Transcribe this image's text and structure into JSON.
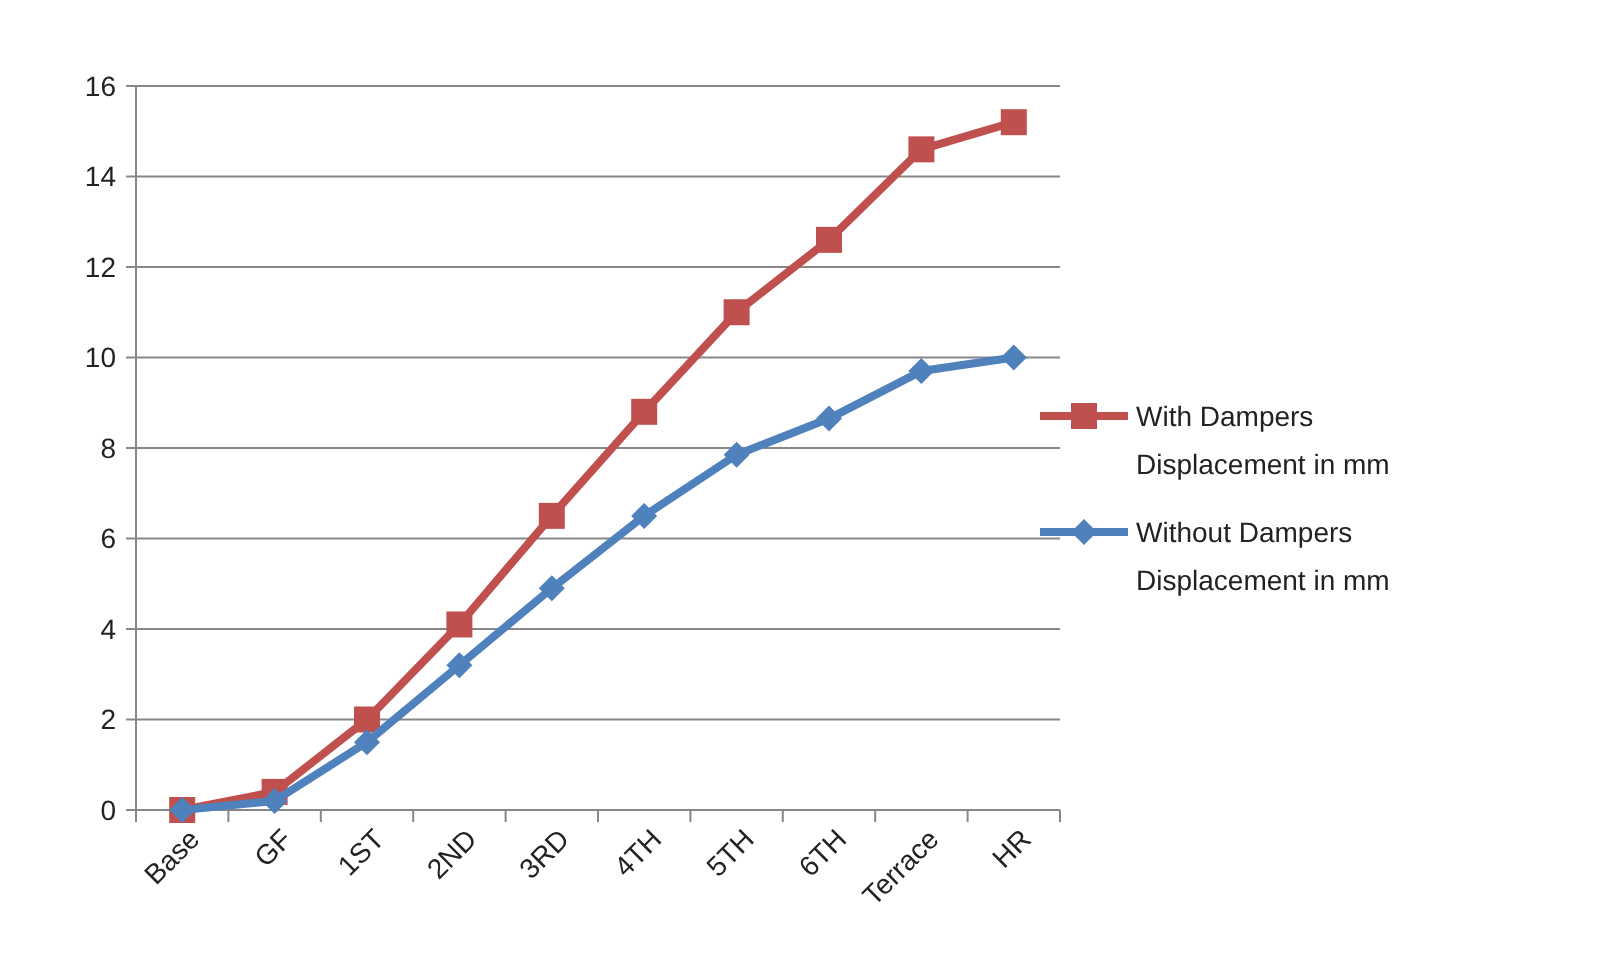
{
  "chart_data": {
    "type": "line",
    "categories": [
      "Base",
      "GF",
      "1ST",
      "2ND",
      "3RD",
      "4TH",
      "5TH",
      "6TH",
      "Terrace",
      "HR"
    ],
    "series": [
      {
        "name": "With Dampers Displacement in mm",
        "color": "#c0504d",
        "marker": "square",
        "values": [
          0,
          0.4,
          2.0,
          4.1,
          6.5,
          8.8,
          11.0,
          12.6,
          14.6,
          15.2
        ]
      },
      {
        "name": "Without Dampers Displacement in mm",
        "color": "#4f81bd",
        "marker": "diamond",
        "values": [
          0,
          0.2,
          1.5,
          3.2,
          4.9,
          6.5,
          7.85,
          8.65,
          9.7,
          10.0
        ]
      }
    ],
    "ylim": [
      0,
      16
    ],
    "yticks": [
      0,
      2,
      4,
      6,
      8,
      10,
      12,
      14,
      16
    ],
    "grid": "y",
    "legend": "right"
  }
}
